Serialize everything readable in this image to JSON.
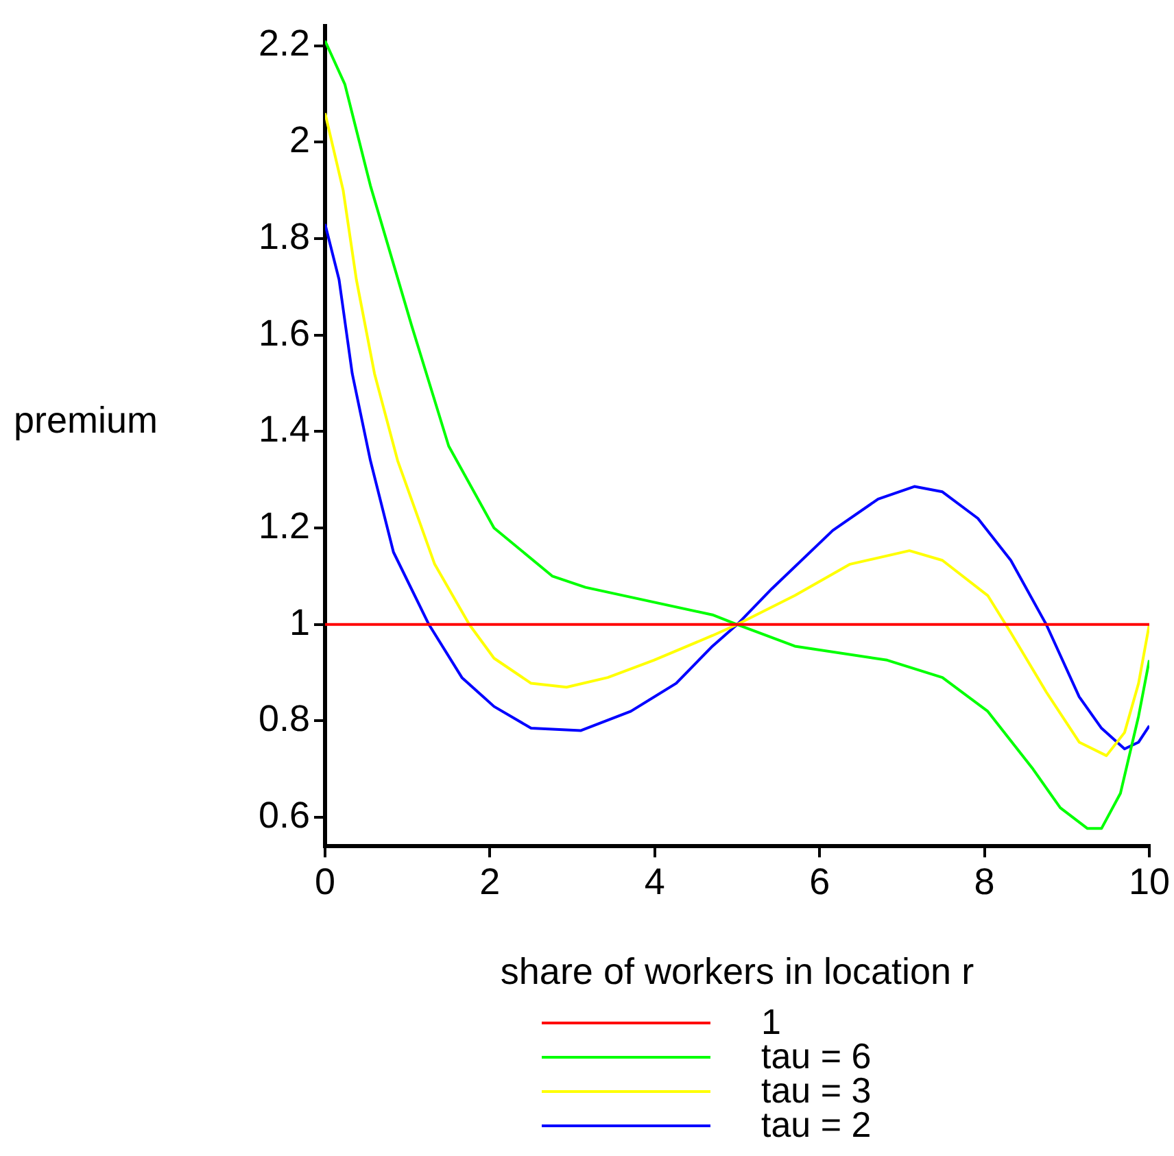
{
  "chart_data": {
    "type": "line",
    "xlabel": "share of workers in location r",
    "ylabel": "premium",
    "xlim": [
      0,
      10
    ],
    "xticks": [
      0,
      2,
      4,
      6,
      8,
      10
    ],
    "ylim": [
      0.54,
      2.24
    ],
    "yticks": [
      0.6,
      0.8,
      1,
      1.2,
      1.4,
      1.6,
      1.8,
      2,
      2.2
    ],
    "grid": false,
    "legend": "bottom",
    "marker": "none",
    "line_style": "solid",
    "series": [
      {
        "name": "1",
        "color": "#ff0000",
        "x": [
          0,
          10
        ],
        "values": [
          1,
          1
        ]
      },
      {
        "name": "tau = 6",
        "color": "#00ff00",
        "x": [
          0,
          0.24,
          0.55,
          1.05,
          1.5,
          2.05,
          2.76,
          3.16,
          4.7,
          5,
          5.7,
          6.82,
          7.49,
          8.04,
          8.59,
          8.92,
          9.25,
          9.42,
          9.65,
          9.87,
          10
        ],
        "values": [
          2.21,
          2.12,
          1.91,
          1.62,
          1.37,
          1.2,
          1.1,
          1.077,
          1.02,
          1,
          0.955,
          0.926,
          0.89,
          0.82,
          0.7,
          0.62,
          0.577,
          0.577,
          0.65,
          0.81,
          0.926
        ]
      },
      {
        "name": "tau = 3",
        "color": "#ffff00",
        "x": [
          0,
          0.22,
          0.38,
          0.6,
          0.88,
          1.33,
          1.75,
          2.05,
          2.5,
          2.93,
          3.43,
          3.99,
          4.7,
          5,
          5.7,
          6.37,
          7.09,
          7.49,
          8.04,
          8.32,
          8.75,
          9.15,
          9.48,
          9.7,
          9.87,
          10
        ],
        "values": [
          2.06,
          1.9,
          1.715,
          1.52,
          1.34,
          1.125,
          1,
          0.93,
          0.878,
          0.87,
          0.89,
          0.926,
          0.977,
          1,
          1.06,
          1.125,
          1.153,
          1.133,
          1.06,
          0.983,
          0.86,
          0.756,
          0.728,
          0.776,
          0.878,
          1
        ]
      },
      {
        "name": "tau = 2",
        "color": "#0000ff",
        "x": [
          0,
          0.17,
          0.33,
          0.55,
          0.83,
          1.26,
          1.66,
          2.05,
          2.5,
          3.1,
          3.71,
          4.26,
          4.7,
          5,
          5.42,
          6.16,
          6.71,
          7.15,
          7.49,
          7.92,
          8.32,
          8.75,
          9.15,
          9.42,
          9.7,
          9.87,
          10
        ],
        "values": [
          1.83,
          1.715,
          1.52,
          1.34,
          1.15,
          1,
          0.89,
          0.83,
          0.785,
          0.78,
          0.82,
          0.878,
          0.955,
          1,
          1.074,
          1.195,
          1.26,
          1.286,
          1.275,
          1.22,
          1.133,
          1,
          0.85,
          0.785,
          0.742,
          0.756,
          0.79
        ]
      }
    ]
  }
}
